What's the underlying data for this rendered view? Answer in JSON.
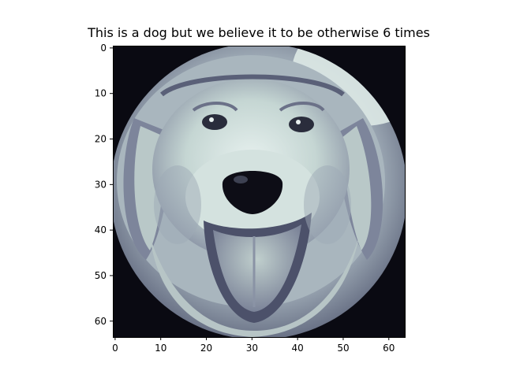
{
  "figure": {
    "title": "This is a dog but we believe it to be otherwise 6 times"
  },
  "image": {
    "description_icon": "dog-face-icon",
    "colormap": "bone",
    "pixel_grid": [
      64,
      64
    ]
  },
  "axes": {
    "x_ticks": [
      "0",
      "10",
      "20",
      "30",
      "40",
      "50",
      "60"
    ],
    "y_ticks": [
      "0",
      "10",
      "20",
      "30",
      "40",
      "50",
      "60"
    ],
    "x_range": [
      -0.5,
      63.5
    ],
    "y_range": [
      -0.5,
      63.5
    ]
  },
  "colors": {
    "dark": "#0b0b14",
    "mid": "#5b5f7a",
    "light": "#c7d9d6",
    "highlight": "#eef5f3"
  }
}
